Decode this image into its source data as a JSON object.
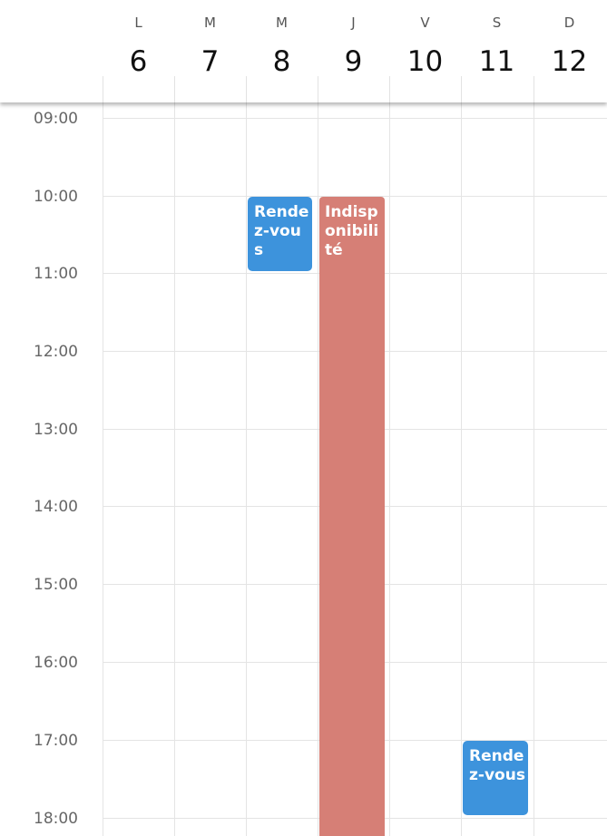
{
  "days": [
    {
      "letter": "L",
      "num": "6"
    },
    {
      "letter": "M",
      "num": "7"
    },
    {
      "letter": "M",
      "num": "8"
    },
    {
      "letter": "J",
      "num": "9"
    },
    {
      "letter": "V",
      "num": "10"
    },
    {
      "letter": "S",
      "num": "11"
    },
    {
      "letter": "D",
      "num": "12"
    }
  ],
  "hours": [
    "09:00",
    "10:00",
    "11:00",
    "12:00",
    "13:00",
    "14:00",
    "15:00",
    "16:00",
    "17:00",
    "18:00"
  ],
  "events": {
    "appt_wed": {
      "title": "Rendez-vous",
      "day": "8",
      "start": "10:00",
      "end": "11:00"
    },
    "unavail_thu": {
      "title": "Indisponibilité",
      "day": "9",
      "start": "10:00"
    },
    "appt_sat": {
      "title": "Rendez-vous",
      "day": "11",
      "start": "17:00",
      "end": "18:00"
    }
  },
  "colors": {
    "appointment": "#3d93dc",
    "unavailability": "#d67f76"
  }
}
